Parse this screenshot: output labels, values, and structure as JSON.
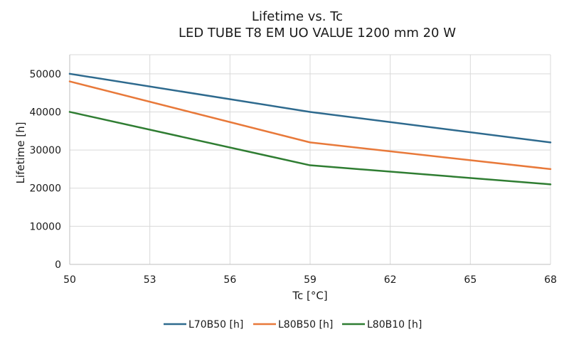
{
  "chart_data": {
    "type": "line",
    "title": "Lifetime vs. Tc",
    "subtitle": "LED TUBE T8 EM UO VALUE 1200 mm 20 W",
    "xlabel": "Tc [°C]",
    "ylabel": "Lifetime [h]",
    "x": [
      50,
      59,
      68
    ],
    "xlim": [
      50,
      68
    ],
    "ylim": [
      0,
      55000
    ],
    "xticks": [
      50,
      53,
      56,
      59,
      62,
      65,
      68
    ],
    "yticks": [
      0,
      10000,
      20000,
      30000,
      40000,
      50000
    ],
    "grid": true,
    "legend_position": "bottom",
    "series": [
      {
        "name": "L70B50 [h]",
        "values": [
          50000,
          40000,
          32000
        ],
        "color": "#2e6a8e"
      },
      {
        "name": "L80B50 [h]",
        "values": [
          48000,
          32000,
          25000
        ],
        "color": "#e8793a"
      },
      {
        "name": "L80B10 [h]",
        "values": [
          40000,
          26000,
          21000
        ],
        "color": "#2f7d32"
      }
    ]
  }
}
